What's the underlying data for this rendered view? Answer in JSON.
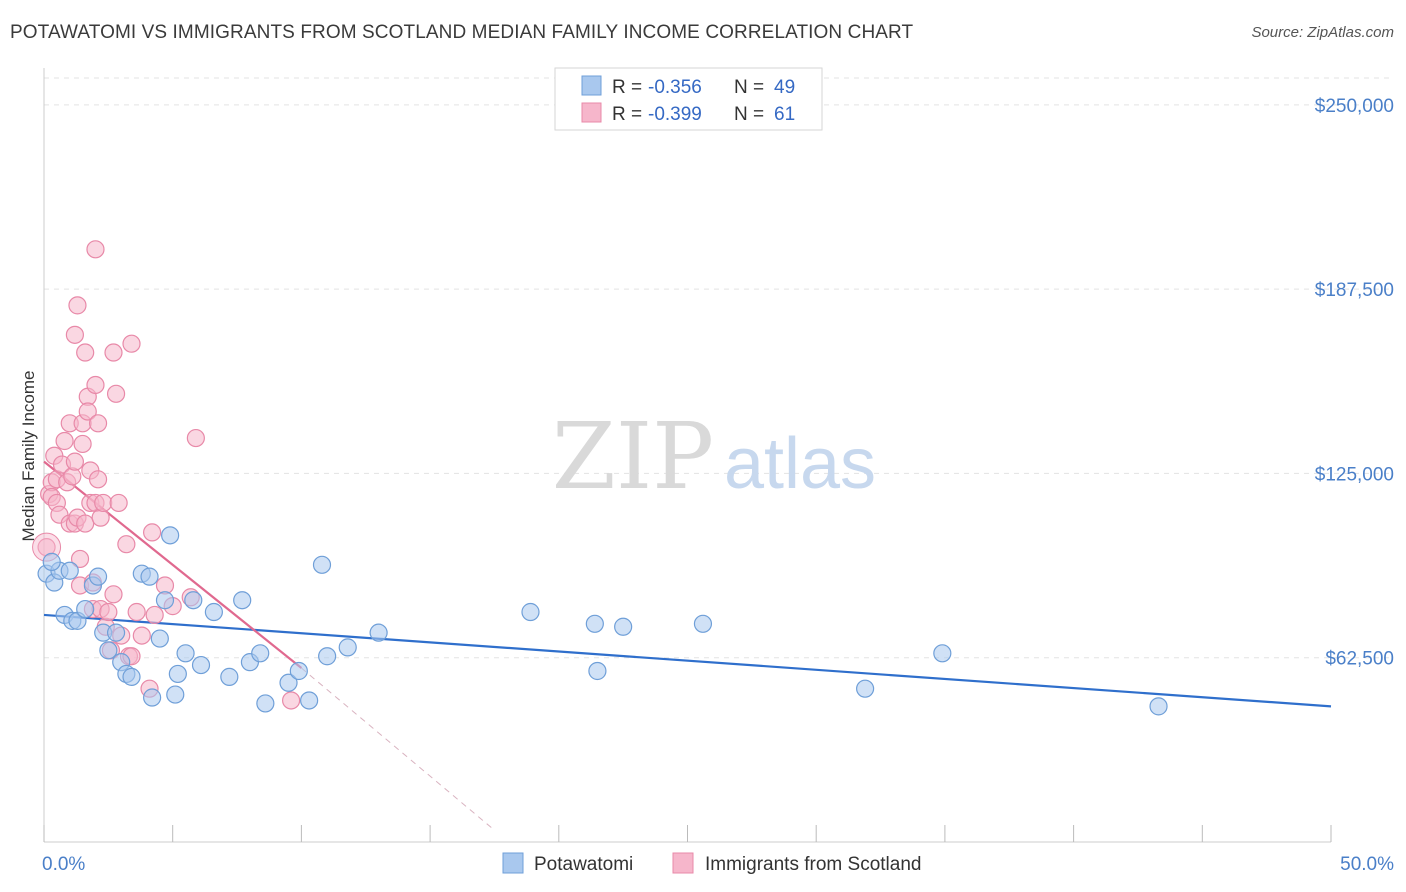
{
  "title": "POTAWATOMI VS IMMIGRANTS FROM SCOTLAND MEDIAN FAMILY INCOME CORRELATION CHART",
  "source": "Source: ZipAtlas.com",
  "colors": {
    "blue_fill": "#a9c8ee",
    "blue_stroke": "#6f9fd8",
    "blue_line": "#2f6fcc",
    "pink_fill": "#f6b6cb",
    "pink_stroke": "#e889a8",
    "pink_line": "#e0698f",
    "tick_label": "#4a7fc8",
    "grid": "#e3e3e3"
  },
  "watermark": {
    "zip": "ZIP",
    "atlas": "atlas"
  },
  "chart_data": {
    "type": "scatter",
    "xlabel": "",
    "ylabel": "Median Family Income",
    "xlim": [
      0,
      50
    ],
    "ylim": [
      0,
      262500
    ],
    "y_ticks": [
      {
        "value": 62500,
        "label": "$62,500"
      },
      {
        "value": 125000,
        "label": "$125,000"
      },
      {
        "value": 187500,
        "label": "$187,500"
      },
      {
        "value": 250000,
        "label": "$250,000"
      }
    ],
    "x_tick_labels": {
      "min": "0.0%",
      "max": "50.0%"
    },
    "grid": true,
    "legend": {
      "placement": "top-center",
      "entries": [
        {
          "r_label": "R =",
          "r_value": "-0.356",
          "n_label": "N =",
          "n_value": "49"
        },
        {
          "r_label": "R =",
          "r_value": "-0.399",
          "n_label": "N =",
          "n_value": "61"
        }
      ]
    },
    "series": [
      {
        "name": "Potawatomi",
        "color": "#a9c8ee",
        "points": [
          [
            0.1,
            91000
          ],
          [
            0.4,
            88000
          ],
          [
            0.6,
            92000
          ],
          [
            0.8,
            77000
          ],
          [
            1.0,
            92000
          ],
          [
            1.1,
            75000
          ],
          [
            1.3,
            75000
          ],
          [
            1.6,
            79000
          ],
          [
            1.9,
            87000
          ],
          [
            2.1,
            90000
          ],
          [
            2.3,
            71000
          ],
          [
            2.5,
            65000
          ],
          [
            2.8,
            71000
          ],
          [
            3.0,
            61000
          ],
          [
            3.2,
            57000
          ],
          [
            3.4,
            56000
          ],
          [
            3.8,
            91000
          ],
          [
            4.1,
            90000
          ],
          [
            4.2,
            49000
          ],
          [
            4.5,
            69000
          ],
          [
            4.7,
            82000
          ],
          [
            4.9,
            104000
          ],
          [
            5.1,
            50000
          ],
          [
            5.2,
            57000
          ],
          [
            5.5,
            64000
          ],
          [
            5.8,
            82000
          ],
          [
            6.1,
            60000
          ],
          [
            6.6,
            78000
          ],
          [
            7.2,
            56000
          ],
          [
            7.7,
            82000
          ],
          [
            8.0,
            61000
          ],
          [
            8.4,
            64000
          ],
          [
            8.6,
            47000
          ],
          [
            9.5,
            54000
          ],
          [
            9.9,
            58000
          ],
          [
            10.3,
            48000
          ],
          [
            10.8,
            94000
          ],
          [
            11.0,
            63000
          ],
          [
            11.8,
            66000
          ],
          [
            13.0,
            71000
          ],
          [
            18.9,
            78000
          ],
          [
            21.4,
            74000
          ],
          [
            21.5,
            58000
          ],
          [
            22.5,
            73000
          ],
          [
            25.6,
            74000
          ],
          [
            31.9,
            52000
          ],
          [
            34.9,
            64000
          ],
          [
            43.3,
            46000
          ],
          [
            0.3,
            95000
          ]
        ]
      },
      {
        "name": "Immigrants from Scotland",
        "color": "#f6b6cb",
        "points": [
          [
            0.1,
            100000
          ],
          [
            0.2,
            118000
          ],
          [
            0.3,
            122000
          ],
          [
            0.3,
            117000
          ],
          [
            0.4,
            131000
          ],
          [
            0.5,
            123000
          ],
          [
            0.5,
            115000
          ],
          [
            0.6,
            111000
          ],
          [
            0.7,
            128000
          ],
          [
            0.8,
            136000
          ],
          [
            0.9,
            122000
          ],
          [
            1.0,
            108000
          ],
          [
            1.0,
            142000
          ],
          [
            1.1,
            124000
          ],
          [
            1.2,
            108000
          ],
          [
            1.2,
            129000
          ],
          [
            1.2,
            172000
          ],
          [
            1.3,
            182000
          ],
          [
            1.3,
            110000
          ],
          [
            1.4,
            87000
          ],
          [
            1.4,
            96000
          ],
          [
            1.5,
            135000
          ],
          [
            1.5,
            142000
          ],
          [
            1.6,
            108000
          ],
          [
            1.6,
            166000
          ],
          [
            1.7,
            151000
          ],
          [
            1.7,
            146000
          ],
          [
            1.8,
            115000
          ],
          [
            1.8,
            126000
          ],
          [
            1.9,
            88000
          ],
          [
            1.9,
            79000
          ],
          [
            2.0,
            201000
          ],
          [
            2.0,
            155000
          ],
          [
            2.0,
            115000
          ],
          [
            2.1,
            142000
          ],
          [
            2.1,
            123000
          ],
          [
            2.2,
            110000
          ],
          [
            2.2,
            79000
          ],
          [
            2.3,
            115000
          ],
          [
            2.4,
            73000
          ],
          [
            2.5,
            78000
          ],
          [
            2.6,
            65000
          ],
          [
            2.7,
            84000
          ],
          [
            2.7,
            166000
          ],
          [
            2.8,
            152000
          ],
          [
            2.9,
            115000
          ],
          [
            3.0,
            70000
          ],
          [
            3.2,
            101000
          ],
          [
            3.3,
            63000
          ],
          [
            3.4,
            63000
          ],
          [
            3.4,
            169000
          ],
          [
            3.6,
            78000
          ],
          [
            3.8,
            70000
          ],
          [
            4.1,
            52000
          ],
          [
            4.2,
            105000
          ],
          [
            4.3,
            77000
          ],
          [
            4.7,
            87000
          ],
          [
            5.0,
            80000
          ],
          [
            5.7,
            83000
          ],
          [
            5.9,
            137000
          ],
          [
            9.6,
            48000
          ]
        ]
      }
    ],
    "trend_lines": [
      {
        "series": "Potawatomi",
        "from": [
          0,
          77000
        ],
        "to": [
          50,
          46000
        ]
      },
      {
        "series": "Immigrants from Scotland",
        "from": [
          0,
          129000
        ],
        "to": [
          10.0,
          59000
        ]
      },
      {
        "series": "Immigrants from Scotland",
        "style": "dashed-extension",
        "from": [
          10.0,
          59000
        ],
        "to": [
          17.5,
          4000
        ]
      }
    ]
  }
}
